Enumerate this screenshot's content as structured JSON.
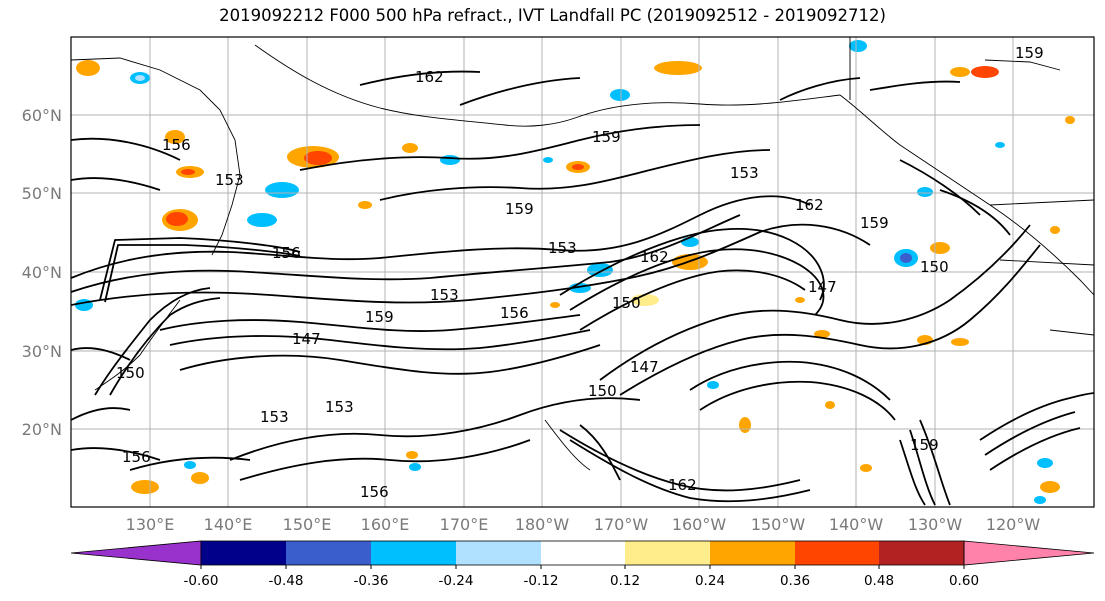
{
  "title": "2019092212 F000 500 hPa refract., IVT Landfall PC (2019092512 - 2019092712)",
  "map": {
    "lat_ticks": [
      "60°N",
      "50°N",
      "40°N",
      "30°N",
      "20°N"
    ],
    "lon_ticks": [
      "130°E",
      "140°E",
      "150°E",
      "160°E",
      "170°E",
      "180°W",
      "170°W",
      "160°W",
      "150°W",
      "140°W",
      "130°W",
      "120°W"
    ],
    "contour_labels": [
      "162",
      "159",
      "156",
      "153",
      "150",
      "147",
      "159",
      "153",
      "156",
      "159",
      "153",
      "162",
      "159",
      "147",
      "150",
      "153",
      "156",
      "162",
      "156",
      "153",
      "147",
      "150",
      "159",
      "162",
      "159",
      "153",
      "150",
      "156"
    ]
  },
  "colorbar": {
    "extend": "both",
    "ticks": [
      "-0.60",
      "-0.48",
      "-0.36",
      "-0.24",
      "-0.12",
      "0.12",
      "0.24",
      "0.36",
      "0.48",
      "0.60"
    ],
    "colors": [
      "#9932cc",
      "#00008b",
      "#3a5fcd",
      "#00bfff",
      "#b0e2ff",
      "#ffffff",
      "#ffec8b",
      "#ffa500",
      "#ff4500",
      "#b22222",
      "#ff82ab"
    ]
  }
}
